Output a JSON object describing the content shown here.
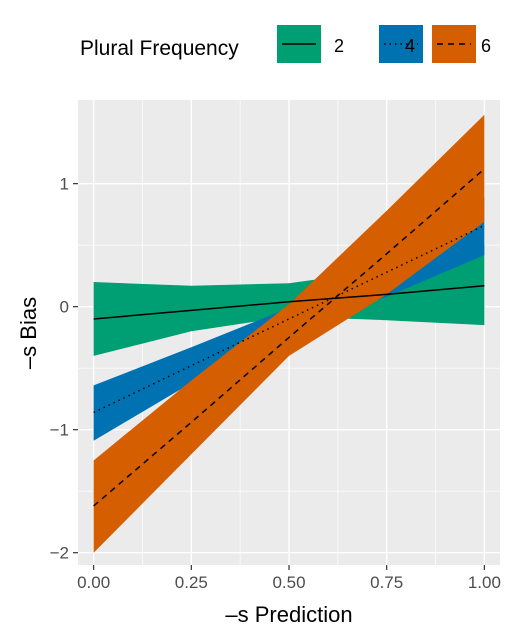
{
  "chart_data": {
    "type": "line",
    "xlabel": "–s Prediction",
    "ylabel": "–s Bias",
    "xlim": [
      -0.04,
      1.04
    ],
    "ylim": [
      -2.1,
      1.68
    ],
    "x_ticks": [
      0,
      0.25,
      0.5,
      0.75,
      1
    ],
    "x_tick_labels": [
      "0.00",
      "0.25",
      "0.50",
      "0.75",
      "1.00"
    ],
    "y_ticks": [
      -2,
      -1,
      0,
      1
    ],
    "y_tick_labels": [
      "−2",
      "−1",
      "0",
      "1"
    ],
    "grid": true,
    "legend": {
      "title": "Plural Frequency",
      "position": "top"
    },
    "series": [
      {
        "name": "2",
        "linetype": "solid",
        "color": "#009E73",
        "x": [
          0,
          0.25,
          0.5,
          0.75,
          1
        ],
        "y": [
          -0.1,
          -0.03,
          0.04,
          0.1,
          0.17
        ],
        "ymin": [
          -0.4,
          -0.2,
          -0.08,
          -0.11,
          -0.15
        ],
        "ymax": [
          0.2,
          0.17,
          0.19,
          0.3,
          0.5
        ]
      },
      {
        "name": "4",
        "linetype": "dotted",
        "color": "#0072B2",
        "x": [
          0,
          0.25,
          0.5,
          0.75,
          1
        ],
        "y": [
          -0.86,
          -0.48,
          -0.1,
          0.28,
          0.66
        ],
        "ymin": [
          -1.09,
          -0.62,
          -0.2,
          0.08,
          0.42
        ],
        "ymax": [
          -0.64,
          -0.33,
          -0.01,
          0.46,
          0.89
        ]
      },
      {
        "name": "6",
        "linetype": "dashed",
        "color": "#D55E00",
        "x": [
          0,
          0.25,
          0.5,
          0.75,
          1
        ],
        "y": [
          -1.62,
          -0.94,
          -0.25,
          0.43,
          1.12
        ],
        "ymin": [
          -2.0,
          -1.2,
          -0.4,
          0.1,
          0.69
        ],
        "ymax": [
          -1.25,
          -0.6,
          0.02,
          0.78,
          1.56
        ]
      }
    ]
  }
}
